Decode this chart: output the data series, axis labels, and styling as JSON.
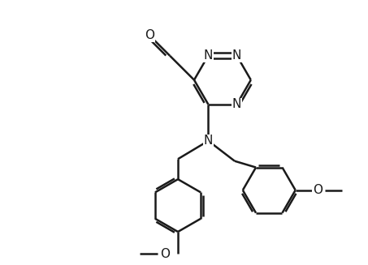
{
  "bg_color": "#ffffff",
  "line_color": "#1a1a1a",
  "line_width": 1.8,
  "font_size": 11,
  "fig_width": 4.53,
  "fig_height": 3.27,
  "dpi": 100,
  "xlim": [
    0,
    9
  ],
  "ylim": [
    0,
    6.5
  ]
}
